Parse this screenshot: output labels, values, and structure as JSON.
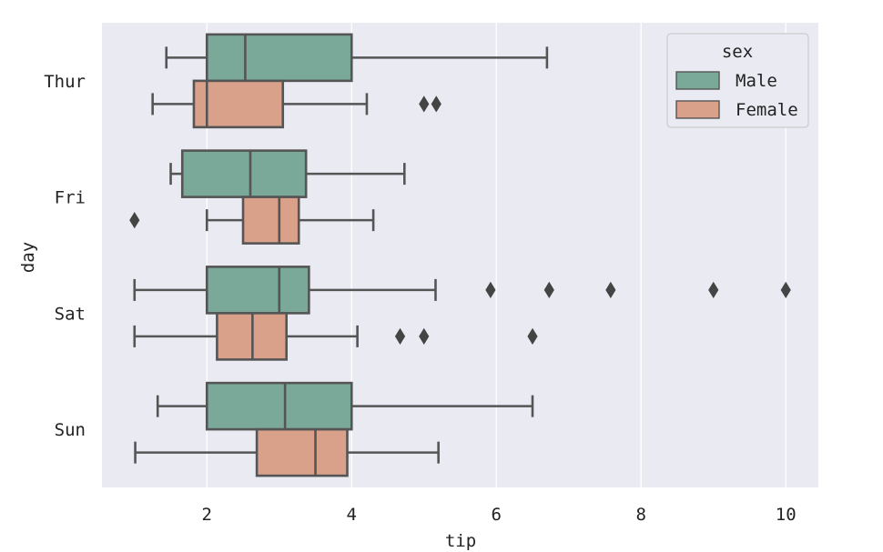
{
  "chart_data": {
    "type": "boxplot",
    "orientation": "horizontal",
    "xlabel": "tip",
    "ylabel": "day",
    "xlim": [
      0.55,
      10.45
    ],
    "xticks": [
      2,
      4,
      6,
      8,
      10
    ],
    "categories": [
      "Thur",
      "Fri",
      "Sat",
      "Sun"
    ],
    "grid": true,
    "legend": {
      "title": "sex",
      "position": "top-right"
    },
    "series": [
      {
        "name": "Male",
        "color": "#7aa999",
        "boxes": [
          {
            "category": "Thur",
            "whisker_low": 1.44,
            "q1": 2.0,
            "median": 2.53,
            "q3": 4.0,
            "whisker_high": 6.7,
            "outliers": []
          },
          {
            "category": "Fri",
            "whisker_low": 1.5,
            "q1": 1.66,
            "median": 2.6,
            "q3": 3.37,
            "whisker_high": 4.73,
            "outliers": []
          },
          {
            "category": "Sat",
            "whisker_low": 1.0,
            "q1": 2.0,
            "median": 3.0,
            "q3": 3.41,
            "whisker_high": 5.16,
            "outliers": [
              5.92,
              6.73,
              7.58,
              9.0,
              10.0
            ]
          },
          {
            "category": "Sun",
            "whisker_low": 1.32,
            "q1": 2.0,
            "median": 3.08,
            "q3": 4.0,
            "whisker_high": 6.5,
            "outliers": []
          }
        ]
      },
      {
        "name": "Female",
        "color": "#d9a08a",
        "boxes": [
          {
            "category": "Thur",
            "whisker_low": 1.25,
            "q1": 1.82,
            "median": 2.0,
            "q3": 3.05,
            "whisker_high": 4.21,
            "outliers": [
              5.0,
              5.17
            ]
          },
          {
            "category": "Fri",
            "whisker_low": 2.0,
            "q1": 2.5,
            "median": 3.0,
            "q3": 3.27,
            "whisker_high": 4.3,
            "outliers": [
              1.0
            ]
          },
          {
            "category": "Sat",
            "whisker_low": 1.0,
            "q1": 2.14,
            "median": 2.63,
            "q3": 3.1,
            "whisker_high": 4.08,
            "outliers": [
              4.67,
              5.0,
              6.5
            ]
          },
          {
            "category": "Sun",
            "whisker_low": 1.01,
            "q1": 2.69,
            "median": 3.5,
            "q3": 3.94,
            "whisker_high": 5.2,
            "outliers": []
          }
        ]
      }
    ]
  }
}
